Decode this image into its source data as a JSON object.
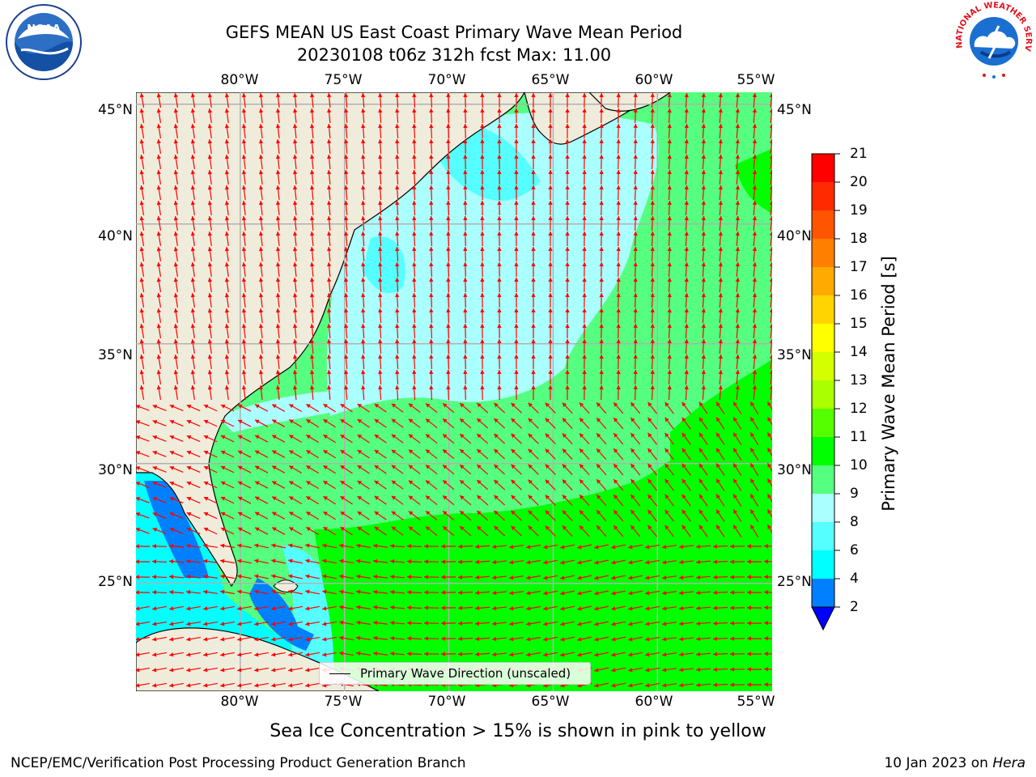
{
  "title": {
    "line1": "GEFS MEAN US East Coast Primary Wave Mean Period",
    "line2": "20230108 t06z 312h fcst   Max: 11.00"
  },
  "map": {
    "lon_ticks": [
      "80°W",
      "75°W",
      "70°W",
      "65°W",
      "60°W",
      "55°W"
    ],
    "lat_ticks": [
      "45°N",
      "40°N",
      "35°N",
      "30°N",
      "25°N"
    ],
    "lon_range": [
      -85,
      -54.5
    ],
    "lat_range": [
      20.5,
      45.5
    ],
    "land_color": "#efecdb",
    "arrow_color": "#ff0000",
    "grid": true
  },
  "legend": {
    "label": "Primary Wave Direction (unscaled)"
  },
  "colorbar": {
    "label": "Primary Wave Mean Period [s]",
    "ticks": [
      "21",
      "20",
      "19",
      "18",
      "17",
      "16",
      "15",
      "14",
      "13",
      "12",
      "11",
      "10",
      "9",
      "8",
      "6",
      "4",
      "2"
    ],
    "colors": [
      "#ff0000",
      "#ff2a00",
      "#ff5500",
      "#ff7f00",
      "#ffaa00",
      "#ffd400",
      "#ffff00",
      "#d4ff00",
      "#aaff00",
      "#55ff00",
      "#00ff00",
      "#55ff7f",
      "#aaffff",
      "#55ffff",
      "#00ffff",
      "#0080ff"
    ],
    "extend_color": "#0000ff"
  },
  "agencies": {
    "left": "NOAA",
    "right": "NATIONAL WEATHER SERVICE"
  },
  "footer": {
    "subtitle": "Sea Ice Concentration > 15% is shown in pink to yellow",
    "left": "NCEP/EMC/Verification Post Processing Product Generation Branch",
    "right_date": "10 Jan 2023 on",
    "right_machine": "Hera"
  }
}
